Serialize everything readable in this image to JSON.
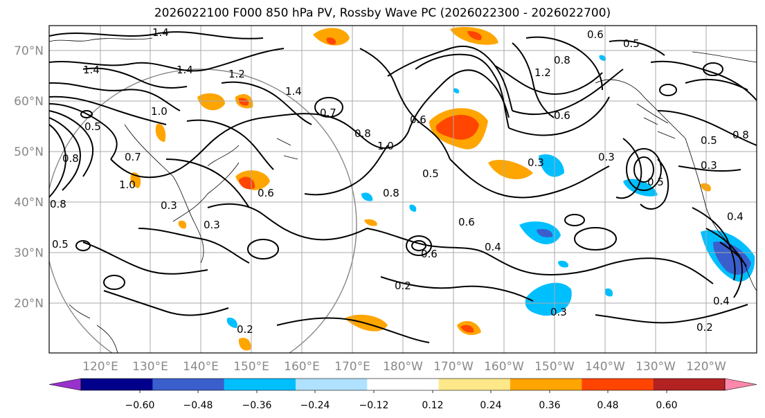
{
  "title": "2026022100 F000 850 hPa PV, Rossby Wave PC (2026022300 - 2026022700)",
  "lat_labels": [
    "70°N",
    "60°N",
    "50°N",
    "40°N",
    "30°N",
    "20°N"
  ],
  "lon_labels": [
    "120°E",
    "130°E",
    "140°E",
    "150°E",
    "160°E",
    "170°E",
    "180°W",
    "170°W",
    "160°W",
    "150°W",
    "140°W",
    "130°W",
    "120°W"
  ],
  "contour_labels": [
    "1.4",
    "1.4",
    "1.4",
    "1.2",
    "1.4",
    "1.0",
    "0.5",
    "0.8",
    "0.7",
    "1.0",
    "0.8",
    "0.5",
    "1.0",
    "0.3",
    "0.6",
    "0.6",
    "0.5",
    "0.8",
    "0.6",
    "0.4",
    "0.3",
    "0.3",
    "0.5",
    "0.8",
    "0.8",
    "1.2",
    "0.5",
    "0.2",
    "0.2",
    "0.3",
    "0.2",
    "0.4",
    "0.4",
    "0.5",
    "0.6",
    "0.3",
    "0.7",
    "0.8",
    "0.3",
    "0.6",
    "0.6"
  ],
  "colorbar": {
    "ticks": [
      "−0.60",
      "−0.48",
      "−0.36",
      "−0.24",
      "−0.12",
      "0.12",
      "0.24",
      "0.36",
      "0.48",
      "0.60"
    ],
    "colors": [
      "#9932cc",
      "#00008b",
      "#3a5fcd",
      "#00bfff",
      "#b0e2ff",
      "#ffffff",
      "#ffe88a",
      "#ffa500",
      "#ff4500",
      "#b22222",
      "#ff88aa"
    ]
  }
}
